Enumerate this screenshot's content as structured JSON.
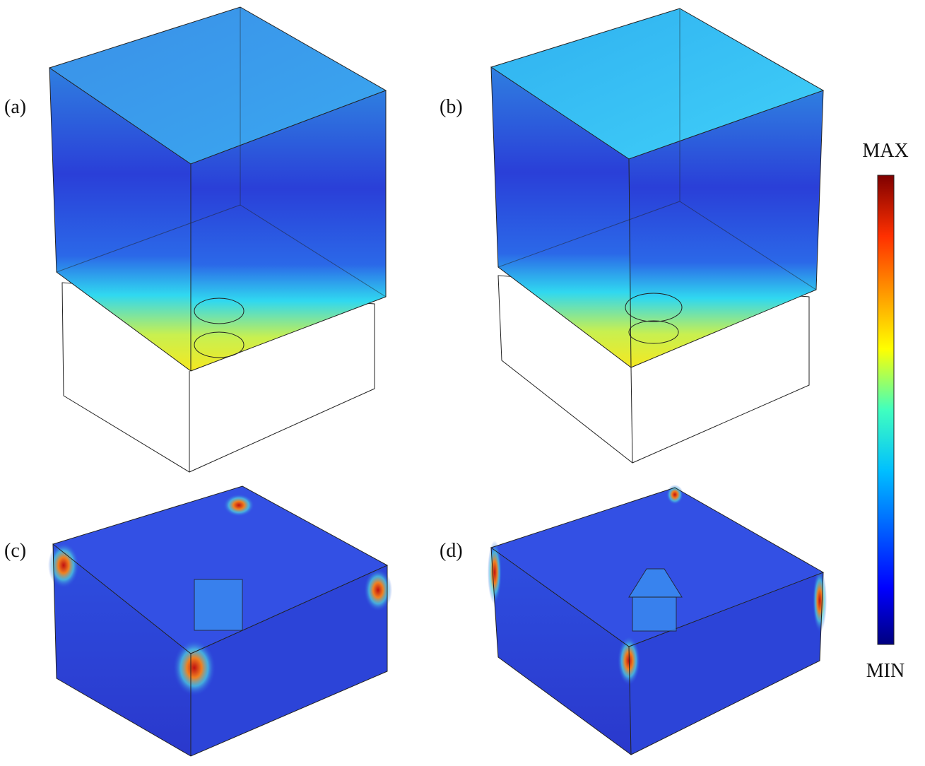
{
  "panels": [
    {
      "label": "(a)"
    },
    {
      "label": "(b)"
    },
    {
      "label": "(c)"
    },
    {
      "label": "(d)"
    }
  ],
  "colorbar": {
    "max_label": "MAX",
    "min_label": "MIN"
  }
}
